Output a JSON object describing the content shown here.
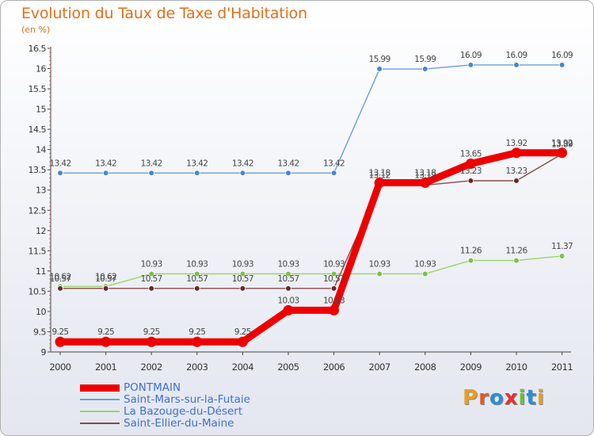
{
  "title": "Evolution du Taux de Taxe d'Habitation",
  "subtitle": "(en %)",
  "logo_text": "Proxiti",
  "logo_colors": [
    "#e8a020",
    "#e85a20",
    "#2a8fd8",
    "#e83030",
    "#6cbf3c",
    "#2a8fd8",
    "#e8a020"
  ],
  "chart_data": {
    "type": "line",
    "title": "Evolution du Taux de Taxe d'Habitation",
    "ylabel": "(en %)",
    "xlabel": "",
    "x": [
      "2000",
      "2001",
      "2002",
      "2003",
      "2004",
      "2005",
      "2006",
      "2007",
      "2008",
      "2009",
      "2010",
      "2011"
    ],
    "ylim": [
      9,
      16.5
    ],
    "yticks": [
      "9",
      "9.5",
      "10",
      "10.5",
      "11",
      "11.5",
      "12",
      "12.5",
      "13",
      "13.5",
      "14",
      "14.5",
      "15",
      "15.5",
      "16",
      "16.5"
    ],
    "grid": false,
    "legend_position": "bottom-left",
    "series": [
      {
        "name": "PONTMAIN",
        "color": "#ee0000",
        "marker_color": "#ee0000",
        "values": [
          9.25,
          9.25,
          9.25,
          9.25,
          9.25,
          10.03,
          10.03,
          13.18,
          13.18,
          13.65,
          13.92,
          13.92
        ],
        "labels": [
          "9.25",
          "9.25",
          "9.25",
          "9.25",
          "9.25",
          "10.03",
          "10.03",
          "13.18",
          "13.18",
          "13.65",
          "13.92",
          "13.92"
        ]
      },
      {
        "name": "Saint-Mars-sur-la-Futaie",
        "color": "#6a9fd8",
        "marker_color": "#4a86c8",
        "values": [
          13.42,
          13.42,
          13.42,
          13.42,
          13.42,
          13.42,
          13.42,
          15.99,
          15.99,
          16.09,
          16.09,
          16.09
        ],
        "labels": [
          "13.42",
          "13.42",
          "13.42",
          "13.42",
          "13.42",
          "13.42",
          "13.42",
          "15.99",
          "15.99",
          "16.09",
          "16.09",
          "16.09"
        ]
      },
      {
        "name": "La Bazouge-du-Désert",
        "color": "#9ad46a",
        "marker_color": "#7cc04a",
        "values": [
          10.62,
          10.62,
          10.93,
          10.93,
          10.93,
          10.93,
          10.93,
          10.93,
          10.93,
          11.26,
          11.26,
          11.37
        ],
        "labels": [
          "10.62",
          "10.62",
          "10.93",
          "10.93",
          "10.93",
          "10.93",
          "10.93",
          "10.93",
          "10.93",
          "11.26",
          "11.26",
          "11.37"
        ]
      },
      {
        "name": "Saint-Ellier-du-Maine",
        "color": "#8a4a4a",
        "marker_color": "#6a2828",
        "values": [
          10.57,
          10.57,
          10.57,
          10.57,
          10.57,
          10.57,
          10.57,
          13.12,
          13.12,
          13.23,
          13.23,
          13.89
        ],
        "labels": [
          "10.57",
          "10.57",
          "10.57",
          "10.57",
          "10.57",
          "10.57",
          "10.57",
          "13.12",
          "13.12",
          "13.23",
          "13.23",
          "13.89"
        ]
      }
    ]
  }
}
